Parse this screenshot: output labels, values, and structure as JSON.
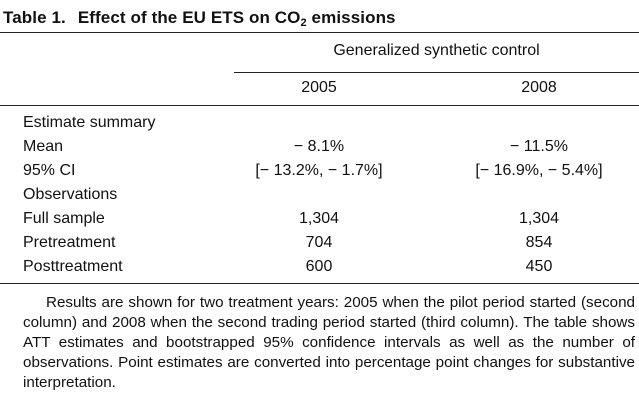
{
  "table": {
    "title_number": "Table 1.",
    "title_text": "Effect of the EU ETS on CO",
    "title_sub": "2",
    "title_tail": " emissions",
    "group_header": "Generalized synthetic control",
    "columns": [
      "2005",
      "2008"
    ],
    "rows": [
      {
        "label": "Estimate summary",
        "values": [
          "",
          ""
        ]
      },
      {
        "label": "Mean",
        "values": [
          "− 8.1%",
          "− 11.5%"
        ]
      },
      {
        "label": "95% CI",
        "values": [
          "[− 13.2%, − 1.7%]",
          "[− 16.9%, − 5.4%]"
        ]
      },
      {
        "label": "Observations",
        "values": [
          "",
          ""
        ]
      },
      {
        "label": "Full sample",
        "values": [
          "1,304",
          "1,304"
        ]
      },
      {
        "label": "Pretreatment",
        "values": [
          "704",
          "854"
        ]
      },
      {
        "label": "Posttreatment",
        "values": [
          "600",
          "450"
        ]
      }
    ],
    "note": "Results are shown for two treatment years: 2005 when the pilot period started (second column) and 2008 when the second trading period started (third column). The table shows ATT estimates and bootstrapped 95% confidence intervals as well as the number of observations. Point estimates are converted into percentage point changes for substantive interpretation."
  }
}
